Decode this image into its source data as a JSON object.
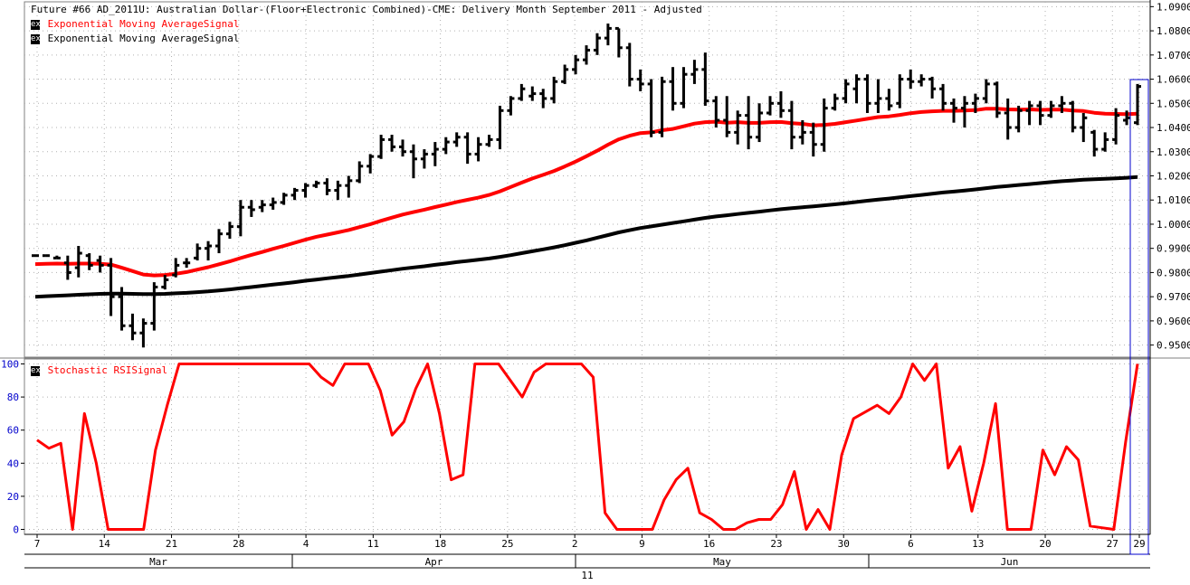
{
  "title": "Future #66 AD_2011U: Australian Dollar-(Floor+Electronic Combined)-CME: Delivery Month September 2011 -  Adjusted",
  "legend_top": [
    {
      "box": "ex",
      "label": "Exponential Moving AverageSignal",
      "color": "#ff0000"
    },
    {
      "box": "ex",
      "label": "Exponential Moving AverageSignal",
      "color": "#000000"
    }
  ],
  "legend_bottom": [
    {
      "box": "ex",
      "label": "Stochastic RSISignal",
      "color": "#ff0000"
    }
  ],
  "x_axis": {
    "day_labels": [
      "7",
      "14",
      "21",
      "28",
      "4",
      "11",
      "18",
      "25",
      "2",
      "9",
      "16",
      "23",
      "30",
      "6",
      "13",
      "20",
      "27",
      "29"
    ],
    "month_labels": [
      "Mar",
      "Apr",
      "May",
      "Jun"
    ],
    "year_label": "11"
  },
  "chart_data": [
    {
      "type": "ohlc",
      "title": "Future #66 AD_2011U: Australian Dollar-(Floor+Electronic Combined)-CME: Delivery Month September 2011 -  Adjusted",
      "ylim": [
        0.945,
        1.092
      ],
      "yticks": [
        "0.9500",
        "0.9600",
        "0.9700",
        "0.9800",
        "0.9900",
        "1.0000",
        "1.0100",
        "1.0200",
        "1.0300",
        "1.0400",
        "1.0500",
        "1.0600",
        "1.0700",
        "1.0800",
        "1.0900"
      ],
      "bars": [
        {
          "o": 0.987,
          "h": 0.987,
          "l": 0.987,
          "c": 0.987
        },
        {
          "o": 0.987,
          "h": 0.987,
          "l": 0.987,
          "c": 0.987
        },
        {
          "o": 0.986,
          "h": 0.987,
          "l": 0.986,
          "c": 0.986
        },
        {
          "o": 0.984,
          "h": 0.987,
          "l": 0.977,
          "c": 0.98
        },
        {
          "o": 0.982,
          "h": 0.991,
          "l": 0.978,
          "c": 0.988
        },
        {
          "o": 0.987,
          "h": 0.988,
          "l": 0.981,
          "c": 0.983
        },
        {
          "o": 0.985,
          "h": 0.987,
          "l": 0.98,
          "c": 0.983
        },
        {
          "o": 0.983,
          "h": 0.986,
          "l": 0.962,
          "c": 0.97
        },
        {
          "o": 0.97,
          "h": 0.974,
          "l": 0.956,
          "c": 0.958
        },
        {
          "o": 0.958,
          "h": 0.963,
          "l": 0.952,
          "c": 0.955
        },
        {
          "o": 0.955,
          "h": 0.961,
          "l": 0.949,
          "c": 0.959
        },
        {
          "o": 0.959,
          "h": 0.976,
          "l": 0.956,
          "c": 0.974
        },
        {
          "o": 0.974,
          "h": 0.979,
          "l": 0.973,
          "c": 0.977
        },
        {
          "o": 0.979,
          "h": 0.986,
          "l": 0.978,
          "c": 0.983
        },
        {
          "o": 0.984,
          "h": 0.986,
          "l": 0.982,
          "c": 0.984
        },
        {
          "o": 0.986,
          "h": 0.992,
          "l": 0.985,
          "c": 0.99
        },
        {
          "o": 0.99,
          "h": 0.993,
          "l": 0.985,
          "c": 0.991
        },
        {
          "o": 0.991,
          "h": 0.998,
          "l": 0.988,
          "c": 0.996
        },
        {
          "o": 0.996,
          "h": 1.001,
          "l": 0.994,
          "c": 0.999
        },
        {
          "o": 0.999,
          "h": 1.01,
          "l": 0.995,
          "c": 1.007
        },
        {
          "o": 1.007,
          "h": 1.01,
          "l": 1.003,
          "c": 1.006
        },
        {
          "o": 1.007,
          "h": 1.01,
          "l": 1.005,
          "c": 1.008
        },
        {
          "o": 1.008,
          "h": 1.011,
          "l": 1.006,
          "c": 1.009
        },
        {
          "o": 1.009,
          "h": 1.013,
          "l": 1.008,
          "c": 1.012
        },
        {
          "o": 1.012,
          "h": 1.015,
          "l": 1.01,
          "c": 1.014
        },
        {
          "o": 1.014,
          "h": 1.017,
          "l": 1.011,
          "c": 1.016
        },
        {
          "o": 1.016,
          "h": 1.018,
          "l": 1.015,
          "c": 1.017
        },
        {
          "o": 1.017,
          "h": 1.019,
          "l": 1.012,
          "c": 1.014
        },
        {
          "o": 1.014,
          "h": 1.018,
          "l": 1.01,
          "c": 1.016
        },
        {
          "o": 1.016,
          "h": 1.02,
          "l": 1.011,
          "c": 1.018
        },
        {
          "o": 1.018,
          "h": 1.026,
          "l": 1.017,
          "c": 1.024
        },
        {
          "o": 1.024,
          "h": 1.029,
          "l": 1.021,
          "c": 1.028
        },
        {
          "o": 1.028,
          "h": 1.037,
          "l": 1.027,
          "c": 1.035
        },
        {
          "o": 1.035,
          "h": 1.037,
          "l": 1.03,
          "c": 1.032
        },
        {
          "o": 1.032,
          "h": 1.035,
          "l": 1.028,
          "c": 1.03
        },
        {
          "o": 1.03,
          "h": 1.033,
          "l": 1.019,
          "c": 1.027
        },
        {
          "o": 1.027,
          "h": 1.031,
          "l": 1.023,
          "c": 1.029
        },
        {
          "o": 1.029,
          "h": 1.034,
          "l": 1.024,
          "c": 1.031
        },
        {
          "o": 1.031,
          "h": 1.036,
          "l": 1.029,
          "c": 1.034
        },
        {
          "o": 1.034,
          "h": 1.038,
          "l": 1.032,
          "c": 1.036
        },
        {
          "o": 1.036,
          "h": 1.038,
          "l": 1.025,
          "c": 1.029
        },
        {
          "o": 1.029,
          "h": 1.036,
          "l": 1.026,
          "c": 1.033
        },
        {
          "o": 1.033,
          "h": 1.037,
          "l": 1.032,
          "c": 1.035
        },
        {
          "o": 1.035,
          "h": 1.049,
          "l": 1.031,
          "c": 1.047
        },
        {
          "o": 1.047,
          "h": 1.053,
          "l": 1.045,
          "c": 1.052
        },
        {
          "o": 1.052,
          "h": 1.058,
          "l": 1.051,
          "c": 1.056
        },
        {
          "o": 1.053,
          "h": 1.057,
          "l": 1.051,
          "c": 1.054
        },
        {
          "o": 1.054,
          "h": 1.056,
          "l": 1.048,
          "c": 1.052
        },
        {
          "o": 1.052,
          "h": 1.061,
          "l": 1.05,
          "c": 1.059
        },
        {
          "o": 1.059,
          "h": 1.066,
          "l": 1.058,
          "c": 1.064
        },
        {
          "o": 1.064,
          "h": 1.07,
          "l": 1.062,
          "c": 1.068
        },
        {
          "o": 1.068,
          "h": 1.074,
          "l": 1.066,
          "c": 1.072
        },
        {
          "o": 1.072,
          "h": 1.079,
          "l": 1.07,
          "c": 1.077
        },
        {
          "o": 1.077,
          "h": 1.083,
          "l": 1.074,
          "c": 1.081
        },
        {
          "o": 1.081,
          "h": 1.081,
          "l": 1.069,
          "c": 1.073
        },
        {
          "o": 1.073,
          "h": 1.075,
          "l": 1.057,
          "c": 1.06
        },
        {
          "o": 1.06,
          "h": 1.064,
          "l": 1.055,
          "c": 1.058
        },
        {
          "o": 1.058,
          "h": 1.06,
          "l": 1.036,
          "c": 1.038
        },
        {
          "o": 1.038,
          "h": 1.061,
          "l": 1.036,
          "c": 1.059
        },
        {
          "o": 1.059,
          "h": 1.065,
          "l": 1.047,
          "c": 1.05
        },
        {
          "o": 1.05,
          "h": 1.065,
          "l": 1.048,
          "c": 1.062
        },
        {
          "o": 1.062,
          "h": 1.068,
          "l": 1.058,
          "c": 1.064
        },
        {
          "o": 1.064,
          "h": 1.071,
          "l": 1.049,
          "c": 1.051
        },
        {
          "o": 1.051,
          "h": 1.053,
          "l": 1.04,
          "c": 1.043
        },
        {
          "o": 1.043,
          "h": 1.053,
          "l": 1.036,
          "c": 1.038
        },
        {
          "o": 1.038,
          "h": 1.047,
          "l": 1.033,
          "c": 1.045
        },
        {
          "o": 1.045,
          "h": 1.053,
          "l": 1.031,
          "c": 1.036
        },
        {
          "o": 1.036,
          "h": 1.05,
          "l": 1.034,
          "c": 1.046
        },
        {
          "o": 1.046,
          "h": 1.053,
          "l": 1.045,
          "c": 1.05
        },
        {
          "o": 1.05,
          "h": 1.055,
          "l": 1.044,
          "c": 1.047
        },
        {
          "o": 1.047,
          "h": 1.051,
          "l": 1.031,
          "c": 1.036
        },
        {
          "o": 1.036,
          "h": 1.043,
          "l": 1.033,
          "c": 1.038
        },
        {
          "o": 1.038,
          "h": 1.042,
          "l": 1.028,
          "c": 1.033
        },
        {
          "o": 1.033,
          "h": 1.052,
          "l": 1.03,
          "c": 1.048
        },
        {
          "o": 1.048,
          "h": 1.054,
          "l": 1.047,
          "c": 1.052
        },
        {
          "o": 1.052,
          "h": 1.06,
          "l": 1.05,
          "c": 1.058
        },
        {
          "o": 1.056,
          "h": 1.062,
          "l": 1.05,
          "c": 1.06
        },
        {
          "o": 1.06,
          "h": 1.062,
          "l": 1.046,
          "c": 1.05
        },
        {
          "o": 1.05,
          "h": 1.06,
          "l": 1.046,
          "c": 1.052
        },
        {
          "o": 1.052,
          "h": 1.056,
          "l": 1.047,
          "c": 1.049
        },
        {
          "o": 1.05,
          "h": 1.062,
          "l": 1.048,
          "c": 1.06
        },
        {
          "o": 1.06,
          "h": 1.064,
          "l": 1.056,
          "c": 1.059
        },
        {
          "o": 1.059,
          "h": 1.062,
          "l": 1.057,
          "c": 1.06
        },
        {
          "o": 1.06,
          "h": 1.061,
          "l": 1.052,
          "c": 1.056
        },
        {
          "o": 1.056,
          "h": 1.058,
          "l": 1.047,
          "c": 1.05
        },
        {
          "o": 1.05,
          "h": 1.052,
          "l": 1.042,
          "c": 1.048
        },
        {
          "o": 1.048,
          "h": 1.053,
          "l": 1.04,
          "c": 1.05
        },
        {
          "o": 1.05,
          "h": 1.054,
          "l": 1.046,
          "c": 1.052
        },
        {
          "o": 1.052,
          "h": 1.06,
          "l": 1.05,
          "c": 1.058
        },
        {
          "o": 1.058,
          "h": 1.059,
          "l": 1.044,
          "c": 1.046
        },
        {
          "o": 1.046,
          "h": 1.052,
          "l": 1.035,
          "c": 1.04
        },
        {
          "o": 1.04,
          "h": 1.049,
          "l": 1.038,
          "c": 1.047
        },
        {
          "o": 1.047,
          "h": 1.051,
          "l": 1.041,
          "c": 1.049
        },
        {
          "o": 1.049,
          "h": 1.051,
          "l": 1.041,
          "c": 1.045
        },
        {
          "o": 1.045,
          "h": 1.051,
          "l": 1.044,
          "c": 1.049
        },
        {
          "o": 1.049,
          "h": 1.053,
          "l": 1.046,
          "c": 1.05
        },
        {
          "o": 1.05,
          "h": 1.051,
          "l": 1.038,
          "c": 1.04
        },
        {
          "o": 1.04,
          "h": 1.046,
          "l": 1.034,
          "c": 1.044
        },
        {
          "o": 1.038,
          "h": 1.039,
          "l": 1.028,
          "c": 1.031
        },
        {
          "o": 1.031,
          "h": 1.038,
          "l": 1.03,
          "c": 1.035
        },
        {
          "o": 1.035,
          "h": 1.048,
          "l": 1.033,
          "c": 1.045
        },
        {
          "o": 1.043,
          "h": 1.047,
          "l": 1.041,
          "c": 1.044
        },
        {
          "o": 1.042,
          "h": 1.058,
          "l": 1.041,
          "c": 1.057
        }
      ],
      "series": [
        {
          "name": "Exponential Moving AverageSignal",
          "color": "#ff0000",
          "values": [
            0.9835,
            0.9836,
            0.9837,
            0.9836,
            0.9837,
            0.9837,
            0.9836,
            0.9833,
            0.982,
            0.9806,
            0.9792,
            0.9788,
            0.979,
            0.9795,
            0.9802,
            0.9812,
            0.9822,
            0.9834,
            0.9846,
            0.986,
            0.9873,
            0.9885,
            0.9898,
            0.991,
            0.9923,
            0.9936,
            0.9948,
            0.9957,
            0.9966,
            0.9976,
            0.9988,
            1.0,
            1.0014,
            1.0027,
            1.004,
            1.005,
            1.006,
            1.0071,
            1.0081,
            1.0092,
            1.0101,
            1.011,
            1.0121,
            1.0136,
            1.0154,
            1.0172,
            1.0189,
            1.0204,
            1.022,
            1.0239,
            1.0259,
            1.0281,
            1.0304,
            1.0329,
            1.0351,
            1.0366,
            1.0377,
            1.038,
            1.0389,
            1.0394,
            1.0405,
            1.0416,
            1.0422,
            1.0424,
            1.042,
            1.0422,
            1.0419,
            1.0419,
            1.0422,
            1.0423,
            1.0418,
            1.0415,
            1.0409,
            1.0411,
            1.0415,
            1.0422,
            1.0429,
            1.0436,
            1.0443,
            1.0446,
            1.0452,
            1.0459,
            1.0464,
            1.0467,
            1.0469,
            1.0469,
            1.047,
            1.0472,
            1.0478,
            1.0478,
            1.0475,
            1.0474,
            1.0475,
            1.0473,
            1.0474,
            1.0474,
            1.047,
            1.0468,
            1.0461,
            1.0457,
            1.0456,
            1.0455,
            1.0457
          ]
        },
        {
          "name": "Exponential Moving AverageSignal",
          "color": "#000000",
          "values": [
            0.97,
            0.9702,
            0.9704,
            0.9706,
            0.9708,
            0.971,
            0.9712,
            0.9713,
            0.9713,
            0.9712,
            0.9711,
            0.9711,
            0.9712,
            0.9714,
            0.9716,
            0.9719,
            0.9722,
            0.9726,
            0.973,
            0.9735,
            0.974,
            0.9745,
            0.975,
            0.9755,
            0.976,
            0.9766,
            0.9771,
            0.9776,
            0.9781,
            0.9786,
            0.9792,
            0.9798,
            0.9804,
            0.981,
            0.9816,
            0.9821,
            0.9826,
            0.9832,
            0.9837,
            0.9843,
            0.9848,
            0.9853,
            0.9858,
            0.9865,
            0.9872,
            0.988,
            0.9888,
            0.9896,
            0.9904,
            0.9913,
            0.9923,
            0.9933,
            0.9944,
            0.9955,
            0.9966,
            0.9975,
            0.9984,
            0.9991,
            0.9998,
            1.0005,
            1.0012,
            1.0019,
            1.0026,
            1.0032,
            1.0037,
            1.0042,
            1.0047,
            1.0052,
            1.0057,
            1.0062,
            1.0066,
            1.007,
            1.0074,
            1.0078,
            1.0082,
            1.0087,
            1.0092,
            1.0097,
            1.0102,
            1.0106,
            1.0111,
            1.0116,
            1.0121,
            1.0126,
            1.0131,
            1.0135,
            1.0139,
            1.0144,
            1.0149,
            1.0154,
            1.0158,
            1.0162,
            1.0166,
            1.017,
            1.0174,
            1.0178,
            1.0181,
            1.0184,
            1.0186,
            1.0188,
            1.019,
            1.0192,
            1.0195
          ]
        }
      ]
    },
    {
      "type": "line",
      "title": "Stochastic RSISignal",
      "ylim": [
        -3,
        103
      ],
      "yticks": [
        "0",
        "20",
        "40",
        "60",
        "80",
        "100"
      ],
      "series": [
        {
          "name": "Stochastic RSISignal",
          "color": "#ff0000",
          "values": [
            54,
            49,
            52,
            0,
            70,
            40,
            0,
            0,
            0,
            0,
            48,
            75,
            100,
            100,
            100,
            100,
            100,
            100,
            100,
            100,
            100,
            100,
            100,
            100,
            92,
            87,
            100,
            100,
            100,
            84,
            57,
            65,
            85,
            100,
            70,
            30,
            33,
            100,
            100,
            100,
            90,
            80,
            95,
            100,
            100,
            100,
            100,
            92,
            10,
            0,
            0,
            0,
            0,
            18,
            30,
            37,
            10,
            6,
            0,
            0,
            4,
            6,
            6,
            15,
            35,
            0,
            12,
            0,
            45,
            67,
            71,
            75,
            70,
            80,
            100,
            90,
            100,
            37,
            50,
            11,
            40,
            76,
            0,
            0,
            0,
            48,
            33,
            50,
            42,
            2,
            1,
            0,
            53,
            100
          ]
        }
      ]
    }
  ]
}
